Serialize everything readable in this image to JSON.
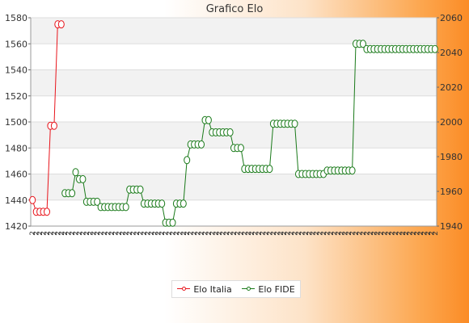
{
  "chart_data": {
    "type": "line",
    "title": "Grafico Elo",
    "legend_position": "bottom",
    "grid": true,
    "xlabel": "",
    "ylabel": "",
    "y_left": {
      "ylim": [
        1420,
        1580
      ],
      "ticks": [
        1420,
        1440,
        1460,
        1480,
        1500,
        1520,
        1540,
        1560,
        1580
      ]
    },
    "y_right": {
      "ylim": [
        1940,
        2060
      ],
      "ticks": [
        1940,
        1960,
        1980,
        2000,
        2020,
        2040,
        2060
      ]
    },
    "n_points": 113,
    "x_tick_label_sample": "2",
    "series": [
      {
        "name": "Elo Italia",
        "axis": "left",
        "color": "#e8141b",
        "points": [
          [
            0,
            1440
          ],
          [
            1,
            1431
          ],
          [
            2,
            1431
          ],
          [
            3,
            1431
          ],
          [
            4,
            1431
          ],
          [
            5,
            1497
          ],
          [
            6,
            1497
          ],
          [
            7,
            1575
          ],
          [
            8,
            1575
          ]
        ]
      },
      {
        "name": "Elo FIDE",
        "axis": "right",
        "color": "#1a7a1a",
        "points": [
          [
            9,
            1959
          ],
          [
            10,
            1959
          ],
          [
            11,
            1959
          ],
          [
            12,
            1971
          ],
          [
            13,
            1967
          ],
          [
            14,
            1967
          ],
          [
            15,
            1954
          ],
          [
            16,
            1954
          ],
          [
            17,
            1954
          ],
          [
            18,
            1954
          ],
          [
            19,
            1951
          ],
          [
            20,
            1951
          ],
          [
            21,
            1951
          ],
          [
            22,
            1951
          ],
          [
            23,
            1951
          ],
          [
            24,
            1951
          ],
          [
            25,
            1951
          ],
          [
            26,
            1951
          ],
          [
            27,
            1961
          ],
          [
            28,
            1961
          ],
          [
            29,
            1961
          ],
          [
            30,
            1961
          ],
          [
            31,
            1953
          ],
          [
            32,
            1953
          ],
          [
            33,
            1953
          ],
          [
            34,
            1953
          ],
          [
            35,
            1953
          ],
          [
            36,
            1953
          ],
          [
            37,
            1942
          ],
          [
            38,
            1942
          ],
          [
            39,
            1942
          ],
          [
            40,
            1953
          ],
          [
            41,
            1953
          ],
          [
            42,
            1953
          ],
          [
            43,
            1978
          ],
          [
            44,
            1987
          ],
          [
            45,
            1987
          ],
          [
            46,
            1987
          ],
          [
            47,
            1987
          ],
          [
            48,
            2001
          ],
          [
            49,
            2001
          ],
          [
            50,
            1994
          ],
          [
            51,
            1994
          ],
          [
            52,
            1994
          ],
          [
            53,
            1994
          ],
          [
            54,
            1994
          ],
          [
            55,
            1994
          ],
          [
            56,
            1985
          ],
          [
            57,
            1985
          ],
          [
            58,
            1985
          ],
          [
            59,
            1973
          ],
          [
            60,
            1973
          ],
          [
            61,
            1973
          ],
          [
            62,
            1973
          ],
          [
            63,
            1973
          ],
          [
            64,
            1973
          ],
          [
            65,
            1973
          ],
          [
            66,
            1973
          ],
          [
            67,
            1999
          ],
          [
            68,
            1999
          ],
          [
            69,
            1999
          ],
          [
            70,
            1999
          ],
          [
            71,
            1999
          ],
          [
            72,
            1999
          ],
          [
            73,
            1999
          ],
          [
            74,
            1970
          ],
          [
            75,
            1970
          ],
          [
            76,
            1970
          ],
          [
            77,
            1970
          ],
          [
            78,
            1970
          ],
          [
            79,
            1970
          ],
          [
            80,
            1970
          ],
          [
            81,
            1970
          ],
          [
            82,
            1972
          ],
          [
            83,
            1972
          ],
          [
            84,
            1972
          ],
          [
            85,
            1972
          ],
          [
            86,
            1972
          ],
          [
            87,
            1972
          ],
          [
            88,
            1972
          ],
          [
            89,
            1972
          ],
          [
            90,
            2045
          ],
          [
            91,
            2045
          ],
          [
            92,
            2045
          ],
          [
            93,
            2042
          ],
          [
            94,
            2042
          ],
          [
            95,
            2042
          ],
          [
            96,
            2042
          ],
          [
            97,
            2042
          ],
          [
            98,
            2042
          ],
          [
            99,
            2042
          ],
          [
            100,
            2042
          ],
          [
            101,
            2042
          ],
          [
            102,
            2042
          ],
          [
            103,
            2042
          ],
          [
            104,
            2042
          ],
          [
            105,
            2042
          ],
          [
            106,
            2042
          ],
          [
            107,
            2042
          ],
          [
            108,
            2042
          ],
          [
            109,
            2042
          ],
          [
            110,
            2042
          ],
          [
            111,
            2042
          ],
          [
            112,
            2042
          ]
        ]
      }
    ],
    "fide_tail": [
      [
        113,
        2042
      ],
      [
        114,
        2042
      ],
      [
        115,
        2042
      ],
      [
        116,
        2042
      ],
      [
        117,
        2042
      ],
      [
        118,
        2042
      ],
      [
        119,
        2042
      ],
      [
        120,
        2042
      ],
      [
        121,
        2042
      ],
      [
        122,
        2042
      ],
      [
        123,
        2042
      ],
      [
        124,
        2042
      ],
      [
        125,
        2042
      ],
      [
        126,
        2042
      ],
      [
        127,
        2042
      ],
      [
        128,
        2042
      ],
      [
        129,
        2042
      ],
      [
        130,
        2042
      ]
    ]
  },
  "legend": {
    "italia_label": "Elo Italia",
    "fide_label": "Elo FIDE"
  }
}
